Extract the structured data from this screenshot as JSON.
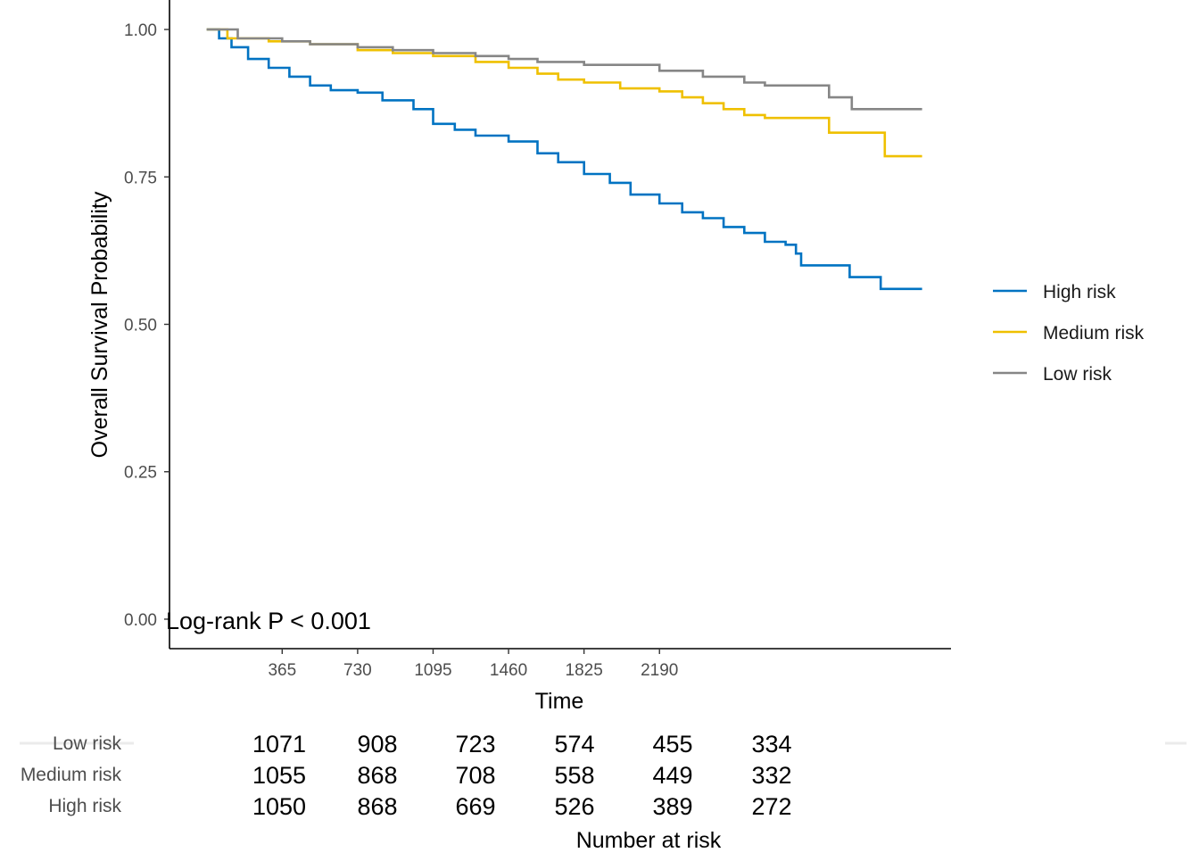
{
  "chart_data": {
    "type": "line",
    "step": true,
    "xlabel": "Time",
    "ylabel": "Overall Survival Probability",
    "xticks": [
      365,
      730,
      1095,
      1460,
      1825,
      2190
    ],
    "yticks": [
      0,
      0.25,
      0.5,
      0.75,
      1
    ],
    "ytick_labels": [
      "0.00",
      "0.25",
      "0.50",
      "0.75",
      "1.00"
    ],
    "xlim": [
      -180,
      3600
    ],
    "ylim": [
      -0.05,
      1.05
    ],
    "grid": false,
    "legend_position": "right",
    "annotation": "Log-rank P < 0.001",
    "series": [
      {
        "name": "High risk",
        "color": "#0073C2",
        "points": [
          [
            0,
            1.0
          ],
          [
            60,
            0.985
          ],
          [
            120,
            0.97
          ],
          [
            200,
            0.95
          ],
          [
            300,
            0.935
          ],
          [
            400,
            0.92
          ],
          [
            500,
            0.905
          ],
          [
            600,
            0.897
          ],
          [
            730,
            0.893
          ],
          [
            850,
            0.88
          ],
          [
            1000,
            0.865
          ],
          [
            1095,
            0.84
          ],
          [
            1200,
            0.83
          ],
          [
            1300,
            0.82
          ],
          [
            1460,
            0.81
          ],
          [
            1600,
            0.79
          ],
          [
            1700,
            0.775
          ],
          [
            1825,
            0.755
          ],
          [
            1950,
            0.74
          ],
          [
            2050,
            0.72
          ],
          [
            2190,
            0.705
          ],
          [
            2300,
            0.69
          ],
          [
            2400,
            0.68
          ],
          [
            2500,
            0.665
          ],
          [
            2600,
            0.655
          ],
          [
            2700,
            0.64
          ],
          [
            2800,
            0.635
          ],
          [
            2850,
            0.62
          ],
          [
            2875,
            0.6
          ],
          [
            3090,
            0.6
          ],
          [
            3110,
            0.58
          ],
          [
            3250,
            0.58
          ],
          [
            3260,
            0.56
          ],
          [
            3460,
            0.56
          ]
        ]
      },
      {
        "name": "Medium risk",
        "color": "#EFC000",
        "points": [
          [
            0,
            1.0
          ],
          [
            100,
            0.985
          ],
          [
            300,
            0.98
          ],
          [
            500,
            0.975
          ],
          [
            730,
            0.965
          ],
          [
            900,
            0.96
          ],
          [
            1095,
            0.955
          ],
          [
            1300,
            0.945
          ],
          [
            1460,
            0.935
          ],
          [
            1600,
            0.925
          ],
          [
            1700,
            0.915
          ],
          [
            1825,
            0.91
          ],
          [
            2000,
            0.9
          ],
          [
            2190,
            0.895
          ],
          [
            2300,
            0.885
          ],
          [
            2400,
            0.875
          ],
          [
            2500,
            0.865
          ],
          [
            2600,
            0.855
          ],
          [
            2700,
            0.85
          ],
          [
            3000,
            0.85
          ],
          [
            3010,
            0.825
          ],
          [
            3270,
            0.825
          ],
          [
            3280,
            0.785
          ],
          [
            3460,
            0.785
          ]
        ]
      },
      {
        "name": "Low risk",
        "color": "#868686",
        "points": [
          [
            0,
            1.0
          ],
          [
            150,
            0.985
          ],
          [
            365,
            0.98
          ],
          [
            500,
            0.975
          ],
          [
            730,
            0.97
          ],
          [
            900,
            0.965
          ],
          [
            1095,
            0.96
          ],
          [
            1300,
            0.955
          ],
          [
            1460,
            0.95
          ],
          [
            1600,
            0.945
          ],
          [
            1825,
            0.94
          ],
          [
            2190,
            0.93
          ],
          [
            2400,
            0.92
          ],
          [
            2600,
            0.91
          ],
          [
            2700,
            0.905
          ],
          [
            3000,
            0.905
          ],
          [
            3010,
            0.885
          ],
          [
            3110,
            0.885
          ],
          [
            3120,
            0.865
          ],
          [
            3460,
            0.865
          ]
        ]
      }
    ],
    "risk_table": {
      "title": "Number at risk",
      "rows": [
        {
          "label": "Low risk",
          "values": [
            "1071",
            "908",
            "723",
            "574",
            "455",
            "334"
          ]
        },
        {
          "label": "Medium risk",
          "values": [
            "1055",
            "868",
            "708",
            "558",
            "449",
            "332"
          ]
        },
        {
          "label": "High risk",
          "values": [
            "1050",
            "868",
            "669",
            "526",
            "389",
            "272"
          ]
        }
      ]
    }
  }
}
